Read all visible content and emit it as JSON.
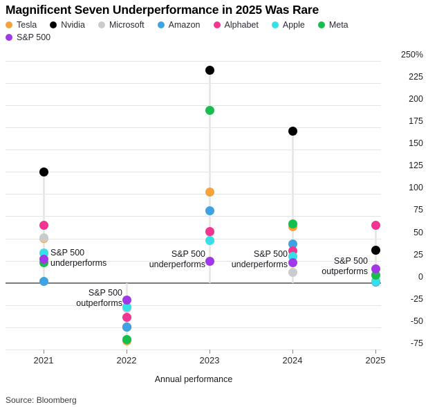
{
  "header": {
    "title": "Magnificent Seven Underperformance in 2025 Was Rare"
  },
  "footer": {
    "source": "Source: Bloomberg"
  },
  "chart_data": {
    "type": "scatter",
    "title": "Magnificent Seven Underperformance in 2025 Was Rare",
    "xlabel": "Annual performance",
    "ylabel": "",
    "x": [
      "2021",
      "2022",
      "2023",
      "2024",
      "2025"
    ],
    "ylim": [
      -75,
      250
    ],
    "grid": true,
    "legend_position": "top",
    "y_ticks": [
      {
        "v": 250,
        "label": "250%"
      },
      {
        "v": 225,
        "label": "225"
      },
      {
        "v": 200,
        "label": "200"
      },
      {
        "v": 175,
        "label": "175"
      },
      {
        "v": 150,
        "label": "150"
      },
      {
        "v": 125,
        "label": "125"
      },
      {
        "v": 100,
        "label": "100"
      },
      {
        "v": 75,
        "label": "75"
      },
      {
        "v": 50,
        "label": "50"
      },
      {
        "v": 25,
        "label": "25"
      },
      {
        "v": 0,
        "label": "0"
      },
      {
        "v": -25,
        "label": "-25"
      },
      {
        "v": -50,
        "label": "-50"
      },
      {
        "v": -75,
        "label": "-75"
      }
    ],
    "series": [
      {
        "name": "Tesla",
        "color": "#F7A139",
        "values": [
          50,
          -65,
          102,
          63,
          9
        ]
      },
      {
        "name": "Nvidia",
        "color": "#000000",
        "values": [
          125,
          -50,
          239,
          171,
          37
        ]
      },
      {
        "name": "Microsoft",
        "color": "#CBCBCB",
        "values": [
          51,
          -29,
          57,
          12,
          2
        ]
      },
      {
        "name": "Amazon",
        "color": "#3EA2E5",
        "values": [
          2,
          -50,
          81,
          44,
          1
        ]
      },
      {
        "name": "Alphabet",
        "color": "#F03690",
        "values": [
          65,
          -39,
          58,
          36,
          65
        ]
      },
      {
        "name": "Apple",
        "color": "#35E0E8",
        "values": [
          34,
          -27,
          48,
          30,
          2
        ]
      },
      {
        "name": "Meta",
        "color": "#15BE4D",
        "values": [
          23,
          -64,
          194,
          66,
          9
        ]
      },
      {
        "name": "S&P 500",
        "color": "#A138E8",
        "values": [
          27,
          -19,
          24,
          23,
          16
        ]
      }
    ],
    "z_order": {
      "2021": [
        "Nvidia",
        "Alphabet",
        "Tesla",
        "Microsoft",
        "Amazon",
        "Apple",
        "Meta",
        "S&P 500"
      ],
      "2022": [
        "Nvidia",
        "Amazon",
        "Tesla",
        "Meta",
        "Alphabet",
        "Microsoft",
        "Apple",
        "S&P 500"
      ],
      "2023": [
        "Nvidia",
        "Meta",
        "Tesla",
        "Amazon",
        "Microsoft",
        "Alphabet",
        "Apple",
        "S&P 500"
      ],
      "2024": [
        "Nvidia",
        "Tesla",
        "Meta",
        "Amazon",
        "Alphabet",
        "Apple",
        "S&P 500",
        "Microsoft"
      ],
      "2025": [
        "Alphabet",
        "Nvidia",
        "Tesla",
        "Microsoft",
        "Amazon",
        "Apple",
        "Meta",
        "S&P 500"
      ]
    },
    "annotations": [
      {
        "lines": [
          "S&P 500",
          "underperforms"
        ],
        "year": "2021",
        "align": "left",
        "x": 73,
        "top": 358
      },
      {
        "lines": [
          "S&P 500",
          "outperforms"
        ],
        "year": "2022",
        "align": "right",
        "right": 442,
        "top": 416
      },
      {
        "lines": [
          "S&P 500",
          "underperforms"
        ],
        "year": "2023",
        "align": "right",
        "right": 322,
        "top": 360
      },
      {
        "lines": [
          "S&P 500",
          "underperforms"
        ],
        "year": "2024",
        "align": "right",
        "right": 203,
        "top": 360
      },
      {
        "lines": [
          "S&P 500",
          "outperforms"
        ],
        "year": "2025",
        "align": "right",
        "right": 87,
        "top": 370
      }
    ]
  }
}
